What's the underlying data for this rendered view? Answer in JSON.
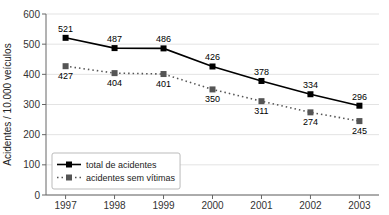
{
  "chart_data": {
    "type": "line",
    "ylabel": "Acidentes / 10.000 veículos",
    "x": [
      1997,
      1998,
      1999,
      2000,
      2001,
      2002,
      2003
    ],
    "xlim": [
      1996.6,
      2003.4
    ],
    "xticks": [
      1997,
      1998,
      1999,
      2000,
      2001,
      2002,
      2003
    ],
    "ylim": [
      0,
      600
    ],
    "yticks": [
      0,
      100,
      200,
      300,
      400,
      500,
      600
    ],
    "grid": true,
    "legend": "lower left",
    "data_labels": true,
    "series": [
      {
        "name": "total de acidentes",
        "color": "#000000",
        "marker": "square",
        "line_style": "solid",
        "values": [
          521,
          487,
          486,
          426,
          378,
          334,
          296
        ]
      },
      {
        "name": "acidentes sem vítimas",
        "color": "#555555",
        "marker": "square",
        "line_style": "dotted",
        "values": [
          427,
          404,
          401,
          350,
          311,
          274,
          245
        ]
      }
    ]
  }
}
